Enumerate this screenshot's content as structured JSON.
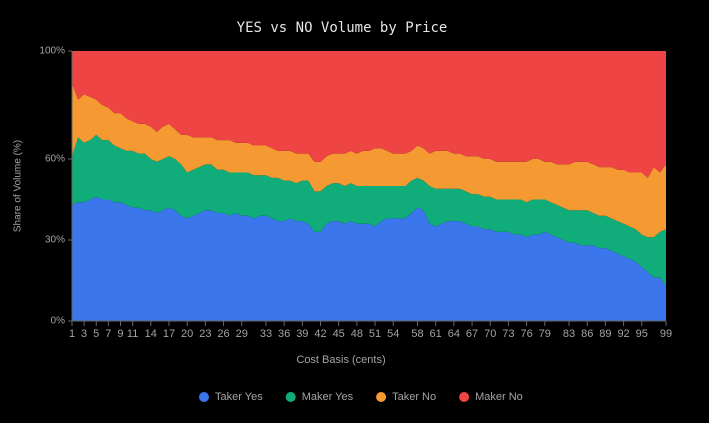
{
  "chart_data": {
    "type": "stacked_area",
    "title": "YES vs NO Volume by Price",
    "x_label": "Cost Basis (cents)",
    "y_label": "Share of Volume (%)",
    "x": [
      1,
      2,
      3,
      4,
      5,
      6,
      7,
      8,
      9,
      10,
      11,
      12,
      13,
      14,
      15,
      16,
      17,
      18,
      19,
      20,
      21,
      22,
      23,
      24,
      25,
      26,
      27,
      28,
      29,
      30,
      31,
      32,
      33,
      34,
      35,
      36,
      37,
      38,
      39,
      40,
      41,
      42,
      43,
      44,
      45,
      46,
      47,
      48,
      49,
      50,
      51,
      52,
      53,
      54,
      55,
      56,
      57,
      58,
      59,
      60,
      61,
      62,
      63,
      64,
      65,
      66,
      67,
      68,
      69,
      70,
      71,
      72,
      73,
      74,
      75,
      76,
      77,
      78,
      79,
      80,
      81,
      82,
      83,
      84,
      85,
      86,
      87,
      88,
      89,
      90,
      91,
      92,
      93,
      94,
      95,
      96,
      97,
      98,
      99
    ],
    "xlim": [
      1,
      99
    ],
    "xticks": [
      1,
      3,
      5,
      7,
      9,
      11,
      14,
      17,
      20,
      23,
      26,
      29,
      33,
      36,
      39,
      42,
      45,
      48,
      51,
      54,
      58,
      61,
      64,
      67,
      70,
      73,
      76,
      79,
      83,
      86,
      89,
      92,
      95,
      99
    ],
    "ylim": [
      0,
      100
    ],
    "yticks": [
      {
        "value": 0,
        "label": "0%"
      },
      {
        "value": 30,
        "label": "30%"
      },
      {
        "value": 60,
        "label": "60%"
      },
      {
        "value": 100,
        "label": "100%"
      }
    ],
    "legend": "bottom",
    "series": [
      {
        "name": "Taker Yes",
        "color": "#3b76ec",
        "values": [
          43,
          44,
          44,
          45,
          46,
          45,
          45,
          44,
          44,
          43,
          42,
          42,
          41,
          41,
          40,
          41,
          42,
          41,
          39,
          38,
          39,
          40,
          41,
          41,
          40,
          40,
          39,
          40,
          39,
          39,
          38,
          39,
          39,
          38,
          37,
          37,
          38,
          37,
          37,
          36,
          33,
          33,
          36,
          37,
          37,
          36,
          37,
          36,
          36,
          36,
          35,
          37,
          38,
          38,
          38,
          38,
          40,
          42,
          41,
          36,
          35,
          36,
          37,
          37,
          37,
          36,
          35,
          35,
          34,
          34,
          33,
          33,
          33,
          32,
          32,
          31,
          32,
          32,
          33,
          32,
          31,
          30,
          29,
          29,
          28,
          28,
          28,
          27,
          27,
          26,
          25,
          24,
          23,
          22,
          20,
          18,
          16,
          16,
          13
        ]
      },
      {
        "name": "Maker Yes",
        "color": "#10ad7b",
        "values": [
          18,
          24,
          22,
          22,
          23,
          22,
          22,
          21,
          20,
          20,
          21,
          20,
          21,
          19,
          19,
          19,
          19,
          19,
          19,
          17,
          17,
          17,
          17,
          17,
          16,
          16,
          16,
          15,
          16,
          16,
          16,
          15,
          15,
          15,
          16,
          15,
          14,
          14,
          15,
          16,
          15,
          15,
          14,
          14,
          14,
          14,
          14,
          14,
          14,
          14,
          15,
          13,
          12,
          12,
          12,
          12,
          12,
          11,
          11,
          14,
          14,
          13,
          12,
          12,
          12,
          12,
          12,
          12,
          12,
          12,
          12,
          12,
          12,
          13,
          13,
          13,
          13,
          13,
          12,
          12,
          12,
          12,
          12,
          12,
          13,
          13,
          12,
          12,
          12,
          12,
          12,
          12,
          12,
          12,
          12,
          13,
          15,
          17,
          21
        ]
      },
      {
        "name": "Taker No",
        "color": "#f59a33",
        "values": [
          27,
          14,
          18,
          16,
          13,
          13,
          12,
          12,
          13,
          12,
          11,
          11,
          11,
          12,
          11,
          12,
          12,
          11,
          11,
          14,
          12,
          11,
          10,
          10,
          11,
          11,
          12,
          11,
          11,
          11,
          11,
          11,
          11,
          11,
          10,
          11,
          11,
          11,
          10,
          10,
          11,
          11,
          11,
          11,
          11,
          12,
          12,
          12,
          13,
          13,
          14,
          14,
          13,
          12,
          12,
          12,
          11,
          12,
          12,
          12,
          14,
          14,
          14,
          13,
          13,
          13,
          14,
          14,
          14,
          14,
          14,
          14,
          14,
          14,
          14,
          15,
          15,
          15,
          14,
          15,
          15,
          16,
          17,
          18,
          18,
          18,
          18,
          18,
          18,
          19,
          19,
          20,
          20,
          21,
          23,
          22,
          26,
          22,
          24
        ]
      },
      {
        "name": "Maker No",
        "color": "#ef4444",
        "values": [
          12,
          18,
          16,
          17,
          18,
          20,
          21,
          23,
          23,
          25,
          26,
          27,
          27,
          28,
          30,
          28,
          27,
          29,
          31,
          31,
          32,
          32,
          32,
          32,
          33,
          33,
          33,
          34,
          34,
          34,
          35,
          35,
          35,
          36,
          37,
          37,
          37,
          38,
          38,
          38,
          41,
          41,
          39,
          38,
          38,
          38,
          37,
          38,
          37,
          37,
          36,
          36,
          37,
          38,
          38,
          38,
          37,
          35,
          36,
          38,
          37,
          37,
          37,
          38,
          38,
          39,
          39,
          39,
          40,
          40,
          41,
          41,
          41,
          41,
          41,
          41,
          40,
          40,
          41,
          41,
          42,
          42,
          42,
          41,
          41,
          41,
          42,
          43,
          43,
          43,
          44,
          44,
          45,
          45,
          45,
          47,
          43,
          45,
          42
        ]
      }
    ]
  }
}
